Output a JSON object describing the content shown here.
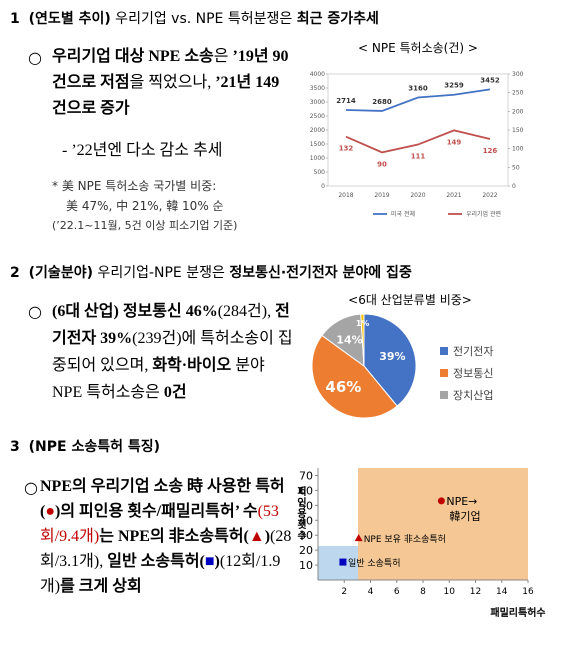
{
  "section1": {
    "number": "1",
    "heading": [
      "(연도별 추이)",
      " 우리기업 vs. NPE 특허분쟁은 ",
      "최근 증가추세"
    ],
    "bullet": [
      "우리기업 대상 NPE 소송",
      "은 ",
      "’19년 90건으로 저점",
      "을 찍었으나, ",
      "’21년 149건으로 증가"
    ],
    "sub": "- ’22년엔 다소 감소 추세",
    "notes": [
      "* 美 NPE 특허소송 국가별 비중:",
      "美 47%, 中 21%, 韓 10% 순",
      "(’22.1~11월, 5건 이상 피소기업 기준)"
    ]
  },
  "section2": {
    "number": "2",
    "heading": [
      "(기술분야)",
      " 우리기업-NPE 분쟁은 ",
      "정보통신·전기전자 분야에 집중"
    ],
    "bullet": [
      "(6대 산업) 정보통신 46%",
      "(284건), ",
      "전기전자 39%",
      "(239건)에 특허소송이 집중되어 있으며, ",
      "화학·바이오",
      " 분야 NPE 특허소송은 ",
      "0건"
    ]
  },
  "section3": {
    "number": "3",
    "heading": "(NPE 소송특허 특징)",
    "bullet": [
      "NPE의 우리기업 소송 時 사용한 특허(",
      "●",
      ")의 피인용 횟수/패밀리특허’ 수",
      "(53회/9.4개)",
      "는 NPE의 非소송특허(",
      "▲",
      ")",
      "(28회/3.1개), ",
      "일반 소송특허(",
      "■",
      ")",
      "(12회/1.9개)",
      "를 크게 상회"
    ]
  },
  "chart_data": [
    {
      "type": "line",
      "title": "< NPE 특허소송(건) >",
      "categories": [
        "2018",
        "2019",
        "2020",
        "2021",
        "2022"
      ],
      "series": [
        {
          "name": "미국 전체",
          "color": "#4472c4",
          "values": [
            2714,
            2680,
            3160,
            3259,
            3452
          ]
        },
        {
          "name": "우리기업 관련",
          "color": "#c0504d",
          "values": [
            132,
            90,
            111,
            149,
            126
          ],
          "axis": "y2"
        }
      ],
      "ylim": [
        0,
        4000
      ],
      "yticks": [
        0,
        500,
        1000,
        1500,
        2000,
        2500,
        3000,
        3500,
        4000
      ],
      "y2lim": [
        0,
        300
      ],
      "y2ticks": [
        0,
        50,
        100,
        150,
        200,
        250,
        300
      ],
      "legend": "bottom"
    },
    {
      "type": "pie",
      "title": "<6대 산업분류별 비중>",
      "categories": [
        "전기전자",
        "정보통신",
        "장치산업",
        null
      ],
      "values": [
        39,
        46,
        14,
        1
      ],
      "value_labels": [
        "39%",
        "46%",
        "14%",
        "1%"
      ],
      "colors": [
        "#4472c4",
        "#ed7d31",
        "#a5a5a5",
        "#ffc000"
      ],
      "legend": "right"
    },
    {
      "type": "scatter",
      "xlabel": "패밀리특허수",
      "ylabel": "피인용횟수",
      "x": [
        9.4,
        3.1,
        1.9
      ],
      "y": [
        53,
        28,
        12
      ],
      "labels": [
        [
          "NPE→",
          "韓기업"
        ],
        [
          "NPE 보유 非소송특허"
        ],
        [
          "일반 소송특허"
        ]
      ],
      "markers": [
        "circle",
        "triangle",
        "square"
      ],
      "colors": [
        "#c00000",
        "#c00000",
        "#0000c0"
      ],
      "xlim": [
        0,
        16
      ],
      "xticks": [
        2,
        4,
        6,
        8,
        10,
        12,
        14,
        16
      ],
      "ylim": [
        0,
        75
      ],
      "yticks": [
        10,
        20,
        30,
        40,
        50,
        60,
        70
      ]
    }
  ]
}
